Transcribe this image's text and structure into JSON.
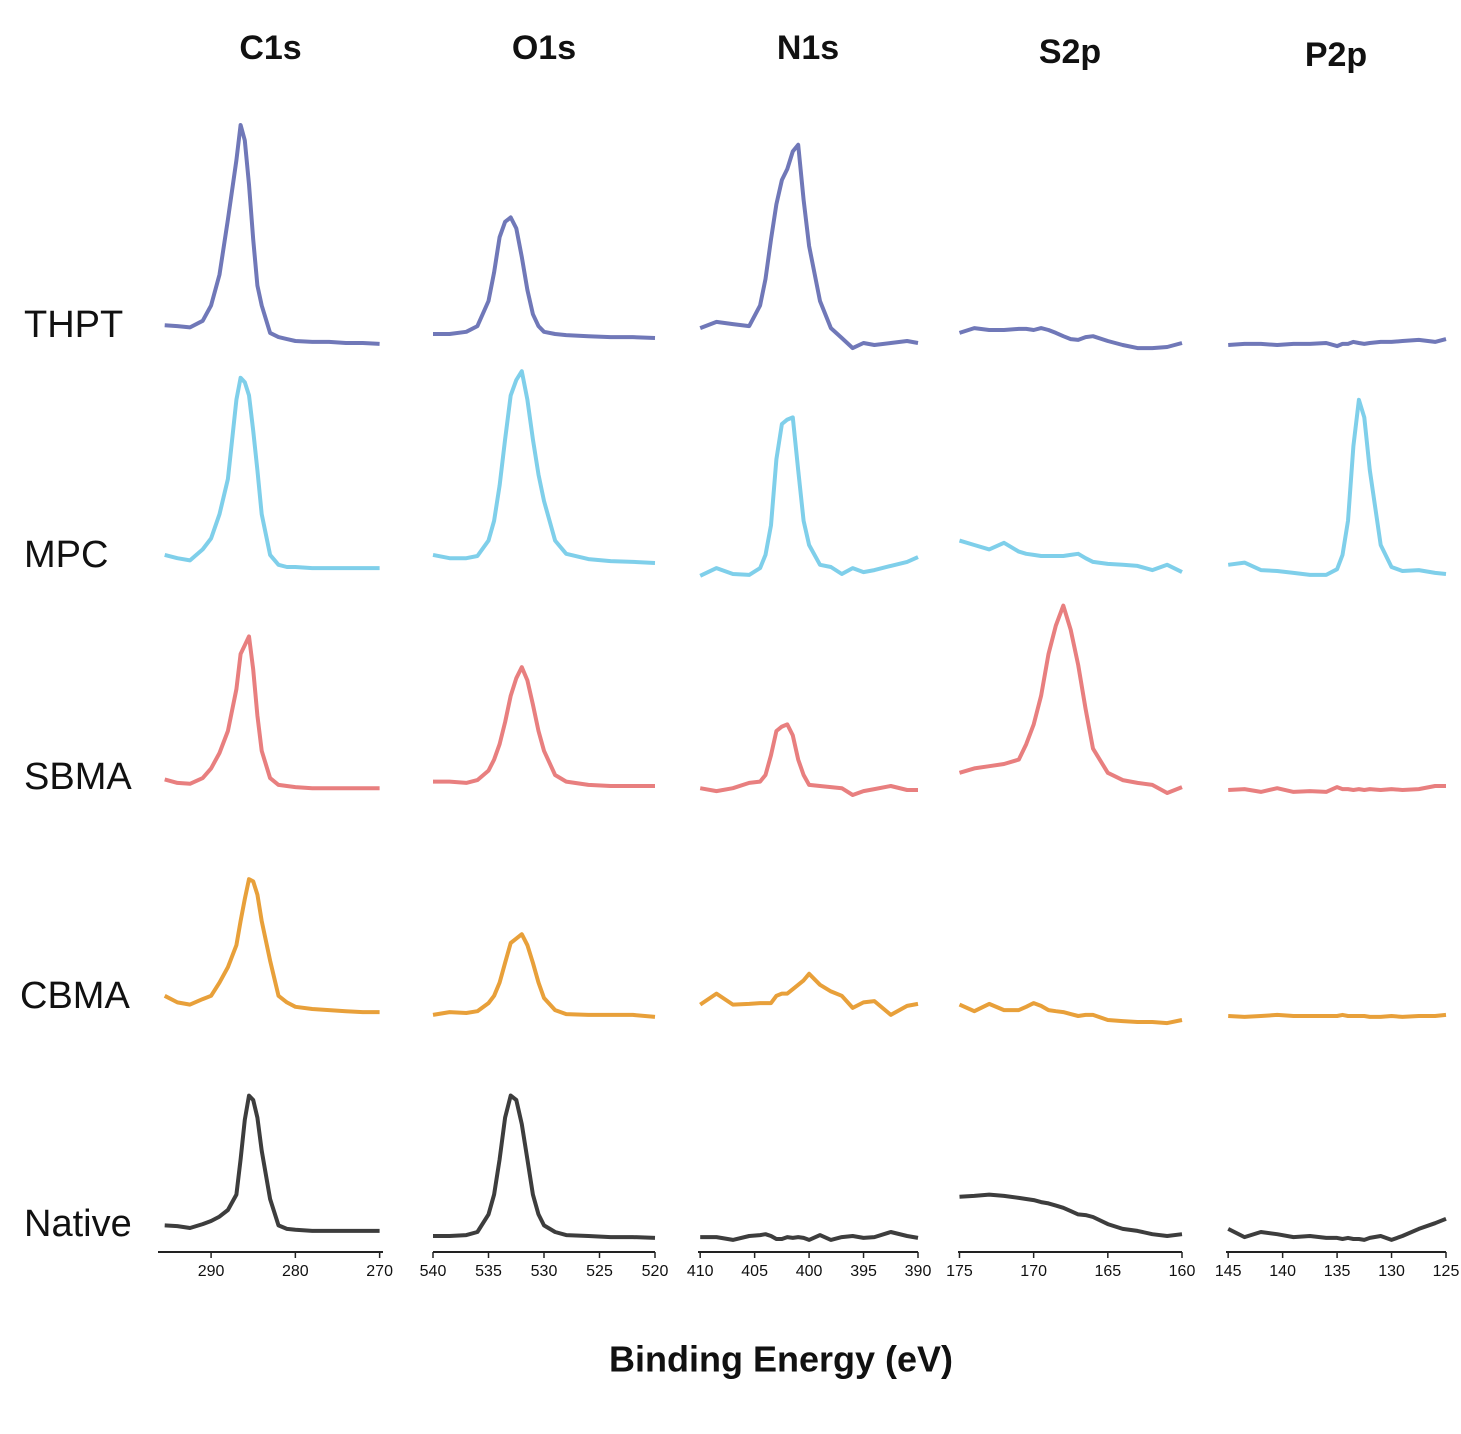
{
  "chart_data": [
    {
      "type": "line",
      "title": "C1s",
      "xlim": [
        296.3,
        269.6
      ],
      "xticks": [
        290,
        280,
        270
      ],
      "x": [
        295.5,
        294,
        292.5,
        291,
        290,
        289,
        288,
        287,
        286.5,
        286,
        285.5,
        285,
        284.5,
        284,
        283,
        282,
        281,
        280,
        278,
        276,
        274,
        272,
        270
      ],
      "series": [
        {
          "name": "THPT",
          "color": "#7078b8",
          "values": [
            9,
            8.6,
            8,
            11,
            18,
            32,
            57,
            84,
            100,
            93,
            73,
            48,
            27,
            18,
            5.5,
            3.6,
            2.7,
            1.8,
            1.4,
            1.4,
            0.9,
            0.9,
            0.5
          ]
        },
        {
          "name": "MPC",
          "color": "#7fcfea",
          "values": [
            10.5,
            9,
            8,
            13,
            18,
            29,
            45,
            81,
            91,
            89,
            83,
            67,
            49,
            29,
            10.5,
            6,
            5,
            5,
            4.5,
            4.5,
            4.5,
            4.5,
            4.5
          ]
        },
        {
          "name": "SBMA",
          "color": "#e87f7f",
          "values": [
            8,
            6.4,
            6,
            8.6,
            13,
            20,
            30,
            49,
            65,
            69,
            73,
            58,
            37,
            21,
            8.6,
            5.5,
            5,
            4.5,
            4,
            4,
            4,
            4,
            4
          ]
        },
        {
          "name": "CBMA",
          "color": "#e8a03a",
          "values": [
            11,
            8,
            7,
            9.5,
            11,
            17,
            24,
            34,
            45,
            55,
            64,
            63,
            57,
            45,
            27,
            11,
            8,
            6,
            5,
            4.5,
            4,
            3.6,
            3.6
          ]
        },
        {
          "name": "Native",
          "color": "#3d3d3d",
          "values": [
            8,
            7.7,
            6.8,
            8.6,
            10,
            12,
            15,
            22,
            38,
            56,
            67,
            65,
            57,
            42,
            20,
            8,
            6.4,
            6,
            5.5,
            5.5,
            5.5,
            5.5,
            5.5
          ]
        }
      ]
    },
    {
      "type": "line",
      "title": "O1s",
      "xlim": [
        540,
        520
      ],
      "xticks": [
        540,
        535,
        530,
        525,
        520
      ],
      "x": [
        540,
        538.5,
        537,
        536,
        535,
        534.5,
        534,
        533.5,
        533,
        532.5,
        532,
        531.5,
        531,
        530.5,
        530,
        529,
        528,
        526,
        524,
        522,
        520
      ],
      "series": [
        {
          "color": "#7078b8",
          "values": [
            5,
            5,
            6,
            8.6,
            20,
            33,
            49,
            56,
            58,
            53,
            40,
            25,
            14,
            8.6,
            6,
            5,
            4.5,
            4,
            3.6,
            3.6,
            3.2
          ]
        },
        {
          "color": "#7fcfea",
          "values": [
            10.5,
            9,
            9,
            10,
            17,
            26,
            42,
            63,
            83,
            90,
            94,
            81,
            63,
            47,
            35,
            17,
            11,
            8.6,
            7.7,
            7.3,
            6.8
          ]
        },
        {
          "color": "#e87f7f",
          "values": [
            7,
            7,
            6.4,
            7.7,
            12,
            17,
            24,
            34,
            46,
            54,
            59,
            53,
            42,
            30,
            21,
            10,
            7,
            5.5,
            5,
            5,
            5
          ]
        },
        {
          "color": "#e8a03a",
          "values": [
            2.3,
            3.6,
            3.2,
            4,
            7.7,
            11,
            17,
            26,
            35,
            37,
            39,
            34,
            26,
            17,
            10,
            4.5,
            2.7,
            2.3,
            2.3,
            2.3,
            1.4
          ]
        },
        {
          "color": "#3d3d3d",
          "values": [
            3.2,
            3.2,
            3.6,
            5,
            13,
            22,
            38,
            57,
            67,
            65,
            54,
            38,
            22,
            13,
            8,
            5,
            3.6,
            3.2,
            2.7,
            2.7,
            2.3
          ]
        }
      ]
    },
    {
      "type": "line",
      "title": "N1s",
      "xlabel": "Binding Energy (eV)",
      "xlim": [
        410.2,
        390
      ],
      "xticks": [
        410,
        405,
        400,
        395,
        390
      ],
      "x": [
        410,
        408.5,
        407,
        405.5,
        404.5,
        404,
        403.5,
        403,
        402.5,
        402,
        401.5,
        401,
        400.5,
        400,
        399,
        398,
        397,
        396,
        395,
        394,
        392.5,
        391,
        390
      ],
      "series": [
        {
          "color": "#7078b8",
          "values": [
            7.7,
            10.5,
            9.5,
            8.6,
            18,
            30,
            48,
            64,
            75,
            80,
            88,
            91,
            66,
            45,
            20,
            7.7,
            3.2,
            -1.4,
            0.9,
            0,
            0.9,
            1.8,
            0.9
          ]
        },
        {
          "color": "#7fcfea",
          "values": [
            1,
            4.5,
            1.8,
            1.4,
            4.5,
            10.5,
            24,
            54,
            70,
            72,
            73,
            49,
            26,
            15,
            6,
            5,
            1.8,
            4.5,
            2.7,
            3.6,
            5.5,
            7.3,
            9.5
          ]
        },
        {
          "color": "#e87f7f",
          "values": [
            4,
            2.7,
            4,
            6.4,
            7,
            10,
            19,
            30,
            32,
            33,
            28,
            17,
            10,
            5.5,
            5,
            4.5,
            4,
            0.9,
            2.7,
            3.6,
            5,
            3.2,
            3.2
          ]
        },
        {
          "color": "#e8a03a",
          "values": [
            7,
            12,
            7,
            7.3,
            7.7,
            7.7,
            7.7,
            11,
            12,
            12,
            14,
            16,
            18,
            21,
            16,
            13,
            11,
            5.5,
            8,
            8.6,
            2.3,
            6.4,
            7.3
          ]
        },
        {
          "color": "#3d3d3d",
          "values": [
            2.7,
            2.7,
            1.4,
            3.2,
            3.6,
            4,
            3.2,
            1.8,
            1.8,
            2.7,
            2.3,
            2.7,
            2.3,
            1.4,
            3.6,
            1.4,
            2.7,
            3.2,
            2.3,
            2.7,
            5,
            3.2,
            2.3
          ]
        }
      ]
    },
    {
      "type": "line",
      "title": "S2p",
      "xlim": [
        175.1,
        160
      ],
      "xticks": [
        175,
        170,
        165,
        160
      ],
      "x": [
        175,
        174,
        173,
        172,
        171,
        170.5,
        170,
        169.5,
        169,
        168.5,
        168,
        167.5,
        167,
        166.5,
        166,
        165,
        164,
        163,
        162,
        161,
        160
      ],
      "series": [
        {
          "color": "#7078b8",
          "values": [
            5.5,
            7.7,
            6.8,
            6.8,
            7.3,
            7.3,
            6.8,
            7.7,
            6.8,
            5.5,
            4,
            2.7,
            2.3,
            3.6,
            4,
            1.8,
            0,
            -1.4,
            -1.4,
            -0.9,
            0.9
          ]
        },
        {
          "color": "#7fcfea",
          "values": [
            17,
            15,
            13,
            16,
            12,
            11,
            10.5,
            10,
            10,
            10,
            10,
            10.5,
            11,
            9,
            7.3,
            6.4,
            6,
            5.5,
            3.6,
            6,
            2.7
          ]
        },
        {
          "color": "#e87f7f",
          "values": [
            11,
            13,
            14,
            15,
            17,
            24,
            33,
            46,
            65,
            78,
            87,
            76,
            60,
            40,
            22,
            11,
            7.7,
            6.4,
            5.5,
            1.8,
            4.5
          ]
        },
        {
          "color": "#e8a03a",
          "values": [
            7,
            4,
            7.3,
            4.5,
            4.5,
            6,
            7.7,
            6.4,
            4.5,
            4,
            3.6,
            2.7,
            1.8,
            2.3,
            2.3,
            0,
            -0.5,
            -0.9,
            -0.9,
            -1.4,
            0
          ]
        },
        {
          "color": "#3d3d3d",
          "values": [
            21,
            21.4,
            22,
            21.4,
            20.5,
            20,
            19.5,
            18.6,
            18,
            17,
            16,
            14.5,
            13,
            12.7,
            11.8,
            8.6,
            6.4,
            5.5,
            4,
            3.2,
            4
          ]
        }
      ]
    },
    {
      "type": "line",
      "title": "P2p",
      "xlim": [
        145.2,
        125
      ],
      "xticks": [
        145,
        140,
        135,
        130,
        125
      ],
      "x": [
        145,
        143.5,
        142,
        140.5,
        139,
        137.5,
        136,
        135,
        134.5,
        134,
        133.5,
        133,
        132.5,
        132,
        131,
        130,
        129,
        127.5,
        126,
        125
      ],
      "series": [
        {
          "color": "#7078b8",
          "values": [
            0,
            0.5,
            0.5,
            0,
            0.5,
            0.5,
            0.9,
            -0.5,
            0.5,
            0.5,
            1.4,
            0.9,
            0.5,
            0.9,
            1.4,
            1.4,
            1.8,
            2.3,
            1.4,
            2.7
          ]
        },
        {
          "color": "#7fcfea",
          "values": [
            6,
            7,
            3.6,
            3.2,
            2.3,
            1.4,
            1.4,
            4,
            10.5,
            26,
            60,
            81,
            73,
            49,
            15,
            5,
            3.2,
            3.6,
            2.3,
            1.8
          ]
        },
        {
          "color": "#e87f7f",
          "values": [
            3.2,
            3.6,
            2.3,
            4,
            2.3,
            2.7,
            2.3,
            4.5,
            3.6,
            3.6,
            3.2,
            3.6,
            3.2,
            3.6,
            3.2,
            3.6,
            3.2,
            3.6,
            5,
            5
          ]
        },
        {
          "color": "#e8a03a",
          "values": [
            1.8,
            1.4,
            1.8,
            2.3,
            1.8,
            1.8,
            1.8,
            1.8,
            2.3,
            1.8,
            1.8,
            1.8,
            1.8,
            1.4,
            1.4,
            1.8,
            1.4,
            1.8,
            1.8,
            2.3
          ]
        },
        {
          "color": "#3d3d3d",
          "values": [
            6.4,
            2.7,
            5,
            4,
            2.7,
            3.2,
            2.3,
            2.3,
            1.8,
            2.3,
            1.8,
            1.8,
            1.4,
            2.3,
            3.2,
            1.4,
            3.2,
            6.4,
            9,
            11
          ]
        }
      ]
    }
  ]
}
